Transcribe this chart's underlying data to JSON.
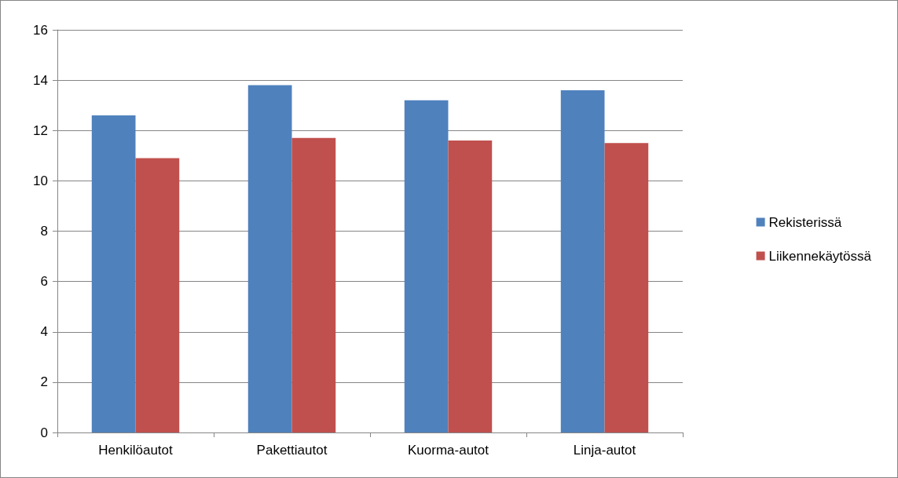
{
  "chart_data": {
    "type": "bar",
    "categories": [
      "Henkilöautot",
      "Pakettiautot",
      "Kuorma-autot",
      "Linja-autot"
    ],
    "series": [
      {
        "name": "Rekisterissä",
        "color": "#4f81bd",
        "values": [
          12.6,
          13.8,
          13.2,
          13.6
        ]
      },
      {
        "name": "Liikennekäytössä",
        "color": "#c0504d",
        "values": [
          10.9,
          11.7,
          11.6,
          11.5
        ]
      }
    ],
    "ylim": [
      0,
      16
    ],
    "yticks": [
      0,
      2,
      4,
      6,
      8,
      10,
      12,
      14,
      16
    ],
    "grid": "y",
    "legend": "right"
  }
}
